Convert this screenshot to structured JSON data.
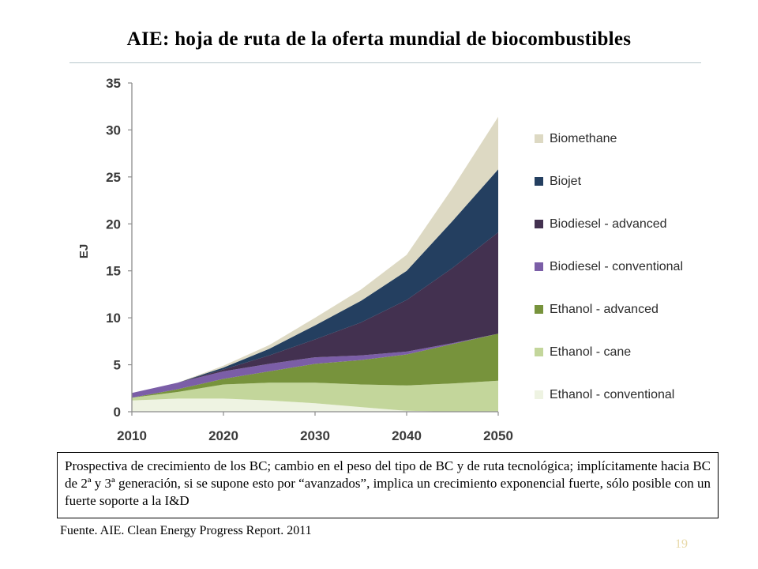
{
  "slide": {
    "title": "AIE: hoja de ruta de la oferta mundial de biocombustibles",
    "note": "Prospectiva de crecimiento de los BC; cambio en el peso del tipo de BC y de ruta tecnológica; implícitamente hacia BC de 2ª y 3ª generación, si se supone esto por “avanzados”, implica un crecimiento exponencial fuerte, sólo posible con un fuerte soporte a la I&D",
    "source": "Fuente. AIE. Clean Energy Progress Report. 2011",
    "page_number": "19"
  },
  "chart_data": {
    "type": "area",
    "stacked": true,
    "title": "",
    "xlabel": "",
    "ylabel": "EJ",
    "x": [
      2010,
      2015,
      2020,
      2025,
      2030,
      2035,
      2040,
      2045,
      2050
    ],
    "xticks": [
      "2010",
      "2020",
      "2030",
      "2040",
      "2050"
    ],
    "yticks": [
      "0",
      "5",
      "10",
      "15",
      "20",
      "25",
      "30",
      "35"
    ],
    "ylim": [
      0,
      35
    ],
    "xlim": [
      2010,
      2050
    ],
    "grid": false,
    "legend_position": "right",
    "series": [
      {
        "name": "Ethanol - conventional",
        "color": "#eef3e2",
        "values": [
          1.2,
          1.4,
          1.4,
          1.2,
          0.9,
          0.5,
          0.1,
          0.0,
          0.0
        ]
      },
      {
        "name": "Ethanol - cane",
        "color": "#c3d69b",
        "values": [
          0.3,
          0.7,
          1.5,
          1.9,
          2.2,
          2.4,
          2.7,
          3.0,
          3.3
        ]
      },
      {
        "name": "Ethanol - advanced",
        "color": "#77933c",
        "values": [
          0.0,
          0.3,
          0.6,
          1.2,
          2.0,
          2.6,
          3.3,
          4.2,
          5.0
        ]
      },
      {
        "name": "Biodiesel - conventional",
        "color": "#7b5ea7",
        "values": [
          0.5,
          0.7,
          0.8,
          0.8,
          0.7,
          0.5,
          0.3,
          0.1,
          0.0
        ]
      },
      {
        "name": "Biodiesel - advanced",
        "color": "#433150",
        "values": [
          0.0,
          0.0,
          0.2,
          0.9,
          1.9,
          3.5,
          5.5,
          8.0,
          10.8
        ]
      },
      {
        "name": "Biojet",
        "color": "#243f60",
        "values": [
          0.0,
          0.0,
          0.2,
          0.7,
          1.5,
          2.3,
          3.1,
          5.0,
          6.7
        ]
      },
      {
        "name": "Biomethane",
        "color": "#ddd9c3",
        "values": [
          0.0,
          0.0,
          0.2,
          0.4,
          0.8,
          1.2,
          1.7,
          3.5,
          5.6
        ]
      }
    ]
  }
}
